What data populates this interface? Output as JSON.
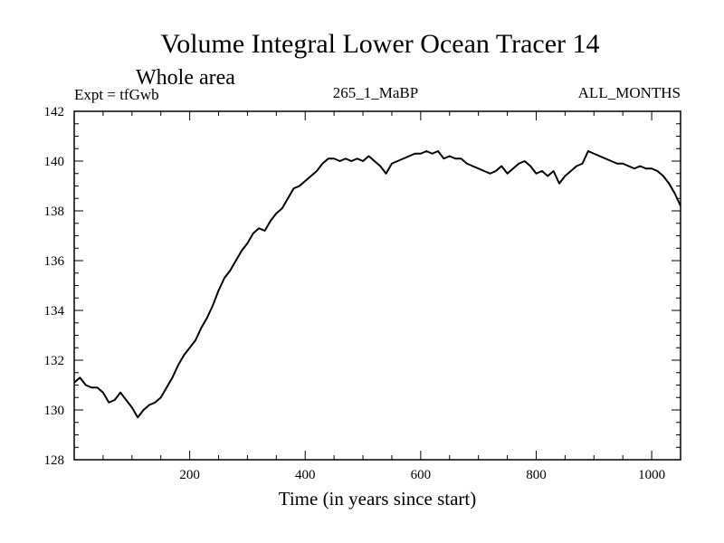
{
  "chart_data": {
    "type": "line",
    "title": "Volume Integral Lower Ocean Tracer 14",
    "subtitle": "Whole area",
    "left_label": "Expt = tfGwb",
    "center_label": "265_1_MaBP",
    "right_label": "ALL_MONTHS",
    "xlabel": "Time (in years since start)",
    "ylabel": "",
    "xlim": [
      0,
      1050
    ],
    "ylim": [
      128,
      142
    ],
    "x_ticks": [
      200,
      400,
      600,
      800,
      1000
    ],
    "x_tick_labels": [
      "200",
      "400",
      "600",
      "800",
      "1000"
    ],
    "y_ticks": [
      128,
      130,
      132,
      134,
      136,
      138,
      140,
      142
    ],
    "y_tick_labels": [
      "128",
      "130",
      "132",
      "134",
      "136",
      "138",
      "140",
      "142"
    ],
    "line_color": "#000000",
    "series": [
      {
        "name": "Lower Ocean Tracer 14",
        "x": [
          0,
          10,
          20,
          30,
          40,
          50,
          60,
          70,
          80,
          90,
          100,
          110,
          120,
          130,
          140,
          150,
          160,
          170,
          180,
          190,
          200,
          210,
          220,
          230,
          240,
          250,
          260,
          270,
          280,
          290,
          300,
          310,
          320,
          330,
          340,
          350,
          360,
          370,
          380,
          390,
          400,
          410,
          420,
          430,
          440,
          450,
          460,
          470,
          480,
          490,
          500,
          510,
          520,
          530,
          540,
          550,
          560,
          570,
          580,
          590,
          600,
          610,
          620,
          630,
          640,
          650,
          660,
          670,
          680,
          690,
          700,
          710,
          720,
          730,
          740,
          750,
          760,
          770,
          780,
          790,
          800,
          810,
          820,
          830,
          840,
          850,
          860,
          870,
          880,
          890,
          900,
          910,
          920,
          930,
          940,
          950,
          960,
          970,
          980,
          990,
          1000,
          1010,
          1020,
          1030,
          1040,
          1050
        ],
        "y": [
          131.1,
          131.3,
          131.0,
          130.9,
          130.9,
          130.7,
          130.3,
          130.4,
          130.7,
          130.4,
          130.1,
          129.7,
          130.0,
          130.2,
          130.3,
          130.5,
          130.9,
          131.3,
          131.8,
          132.2,
          132.5,
          132.8,
          133.3,
          133.7,
          134.2,
          134.8,
          135.3,
          135.6,
          136.0,
          136.4,
          136.7,
          137.1,
          137.3,
          137.2,
          137.6,
          137.9,
          138.1,
          138.5,
          138.9,
          139.0,
          139.2,
          139.4,
          139.6,
          139.9,
          140.1,
          140.1,
          140.0,
          140.1,
          140.0,
          140.1,
          140.0,
          140.2,
          140.0,
          139.8,
          139.5,
          139.9,
          140.0,
          140.1,
          140.2,
          140.3,
          140.3,
          140.4,
          140.3,
          140.4,
          140.1,
          140.2,
          140.1,
          140.1,
          139.9,
          139.8,
          139.7,
          139.6,
          139.5,
          139.6,
          139.8,
          139.5,
          139.7,
          139.9,
          140.0,
          139.8,
          139.5,
          139.6,
          139.4,
          139.6,
          139.1,
          139.4,
          139.6,
          139.8,
          139.9,
          140.4,
          140.3,
          140.2,
          140.1,
          140.0,
          139.9,
          139.9,
          139.8,
          139.7,
          139.8,
          139.7,
          139.7,
          139.6,
          139.4,
          139.1,
          138.7,
          138.2
        ]
      }
    ]
  }
}
